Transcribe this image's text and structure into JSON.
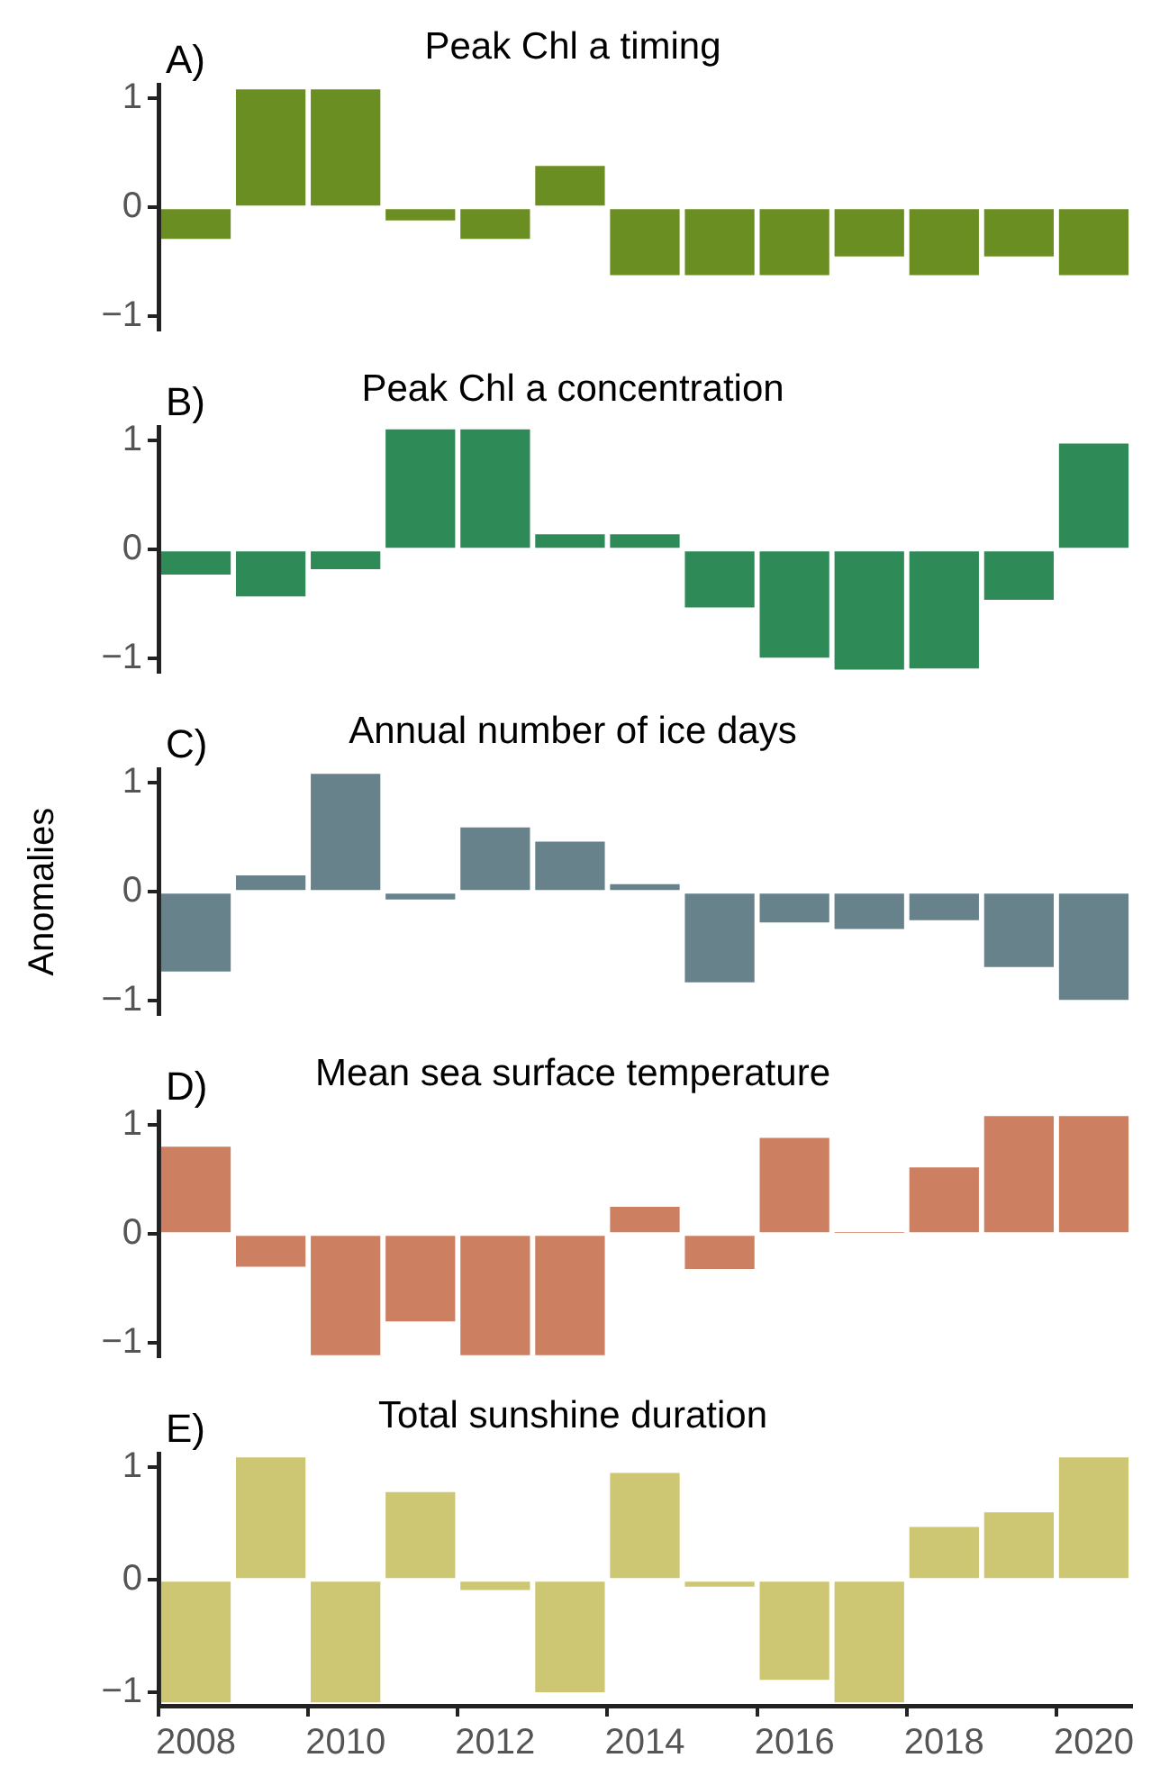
{
  "chart_data": [
    {
      "type": "bar",
      "title": "Peak Chl a timing",
      "annotations": [
        "A)"
      ],
      "categories": [
        "2008",
        null,
        "2010",
        null,
        "2012",
        null,
        "2014",
        null,
        "2016",
        null,
        "2018",
        null,
        "2020"
      ],
      "values": [
        -0.29,
        1.08,
        1.08,
        -0.12,
        -0.29,
        0.38,
        -0.62,
        -0.62,
        -0.62,
        -0.45,
        -0.62,
        -0.45,
        -0.62
      ],
      "color": "#6b8e23",
      "ylim": [
        -1.12,
        1.12
      ],
      "yticks": [
        -1,
        0,
        1
      ],
      "grid": false,
      "tick_labels": "y"
    },
    {
      "type": "bar",
      "title": "Peak Chl a concentration",
      "annotations": [
        "B)"
      ],
      "categories": [
        "2008",
        null,
        "2010",
        null,
        "2012",
        null,
        "2014",
        null,
        "2016",
        null,
        "2018",
        null,
        "2020"
      ],
      "values": [
        -0.23,
        -0.43,
        -0.18,
        1.1,
        1.1,
        0.14,
        0.14,
        -0.53,
        -0.99,
        -1.1,
        -1.09,
        -0.46,
        0.97
      ],
      "color": "#2e8b57",
      "ylim": [
        -1.12,
        1.12
      ],
      "yticks": [
        -1,
        0,
        1
      ],
      "grid": false,
      "tick_labels": "y"
    },
    {
      "type": "bar",
      "title": "Annual number of ice days",
      "annotations": [
        "C)"
      ],
      "ylabel": "Anomalies",
      "categories": [
        "2008",
        null,
        "2010",
        null,
        "2012",
        null,
        "2014",
        null,
        "2016",
        null,
        "2018",
        null,
        "2020"
      ],
      "values": [
        -0.73,
        0.15,
        1.08,
        -0.07,
        0.59,
        0.46,
        0.07,
        -0.83,
        -0.28,
        -0.34,
        -0.26,
        -0.69,
        -0.99
      ],
      "color": "#68828c",
      "ylim": [
        -1.12,
        1.12
      ],
      "yticks": [
        -1,
        0,
        1
      ],
      "grid": false,
      "tick_labels": "y"
    },
    {
      "type": "bar",
      "title": "Mean sea surface temperature",
      "annotations": [
        "D)"
      ],
      "categories": [
        "2008",
        null,
        "2010",
        null,
        "2012",
        null,
        "2014",
        null,
        "2016",
        null,
        "2018",
        null,
        "2020"
      ],
      "values": [
        0.8,
        -0.3,
        -1.11,
        -0.8,
        -1.11,
        -1.11,
        0.25,
        -0.32,
        0.88,
        0.01,
        0.61,
        1.08,
        1.08
      ],
      "color": "#cd7f62",
      "ylim": [
        -1.12,
        1.12
      ],
      "yticks": [
        -1,
        0,
        1
      ],
      "grid": false,
      "tick_labels": "y"
    },
    {
      "type": "bar",
      "title": "Total sunshine duration",
      "annotations": [
        "E)"
      ],
      "categories": [
        "2008",
        null,
        "2010",
        null,
        "2012",
        null,
        "2014",
        null,
        "2016",
        null,
        "2018",
        null,
        "2020"
      ],
      "values": [
        -1.09,
        1.09,
        -1.09,
        0.78,
        -0.09,
        -1.0,
        0.95,
        -0.06,
        -0.89,
        -1.09,
        0.47,
        0.6,
        1.09
      ],
      "color": "#cdc673",
      "ylim": [
        -1.12,
        1.12
      ],
      "yticks": [
        -1,
        0,
        1
      ],
      "grid": false
    }
  ]
}
